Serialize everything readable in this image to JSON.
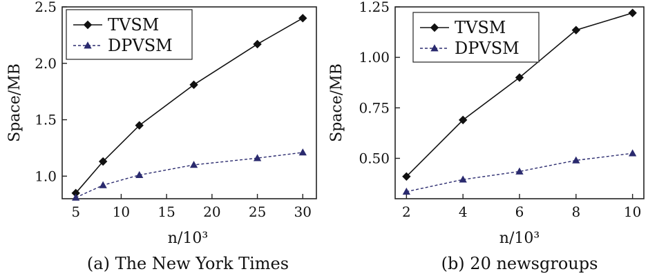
{
  "chart_data": [
    {
      "type": "line",
      "caption": "(a) The New York Times",
      "xlabel": "n/10³",
      "ylabel": "Space/MB",
      "xlim": [
        3.5,
        31.5
      ],
      "ylim": [
        0.8,
        2.5
      ],
      "xticks": [
        "5",
        "10",
        "15",
        "20",
        "25",
        "30"
      ],
      "yticks": [
        "1.0",
        "1.5",
        "2.0",
        "2.5"
      ],
      "legend_position": "top-left",
      "grid": false,
      "series": [
        {
          "name": "TVSM",
          "color": "#111111",
          "marker": "diamond",
          "style": "solid",
          "x": [
            5,
            8,
            12,
            18,
            25,
            30
          ],
          "y": [
            0.85,
            1.13,
            1.45,
            1.81,
            2.17,
            2.4
          ]
        },
        {
          "name": "DPVSM",
          "color": "#2a2a6e",
          "marker": "triangle",
          "style": "dashed",
          "x": [
            5,
            8,
            12,
            18,
            25,
            30
          ],
          "y": [
            0.81,
            0.92,
            1.01,
            1.1,
            1.16,
            1.21
          ]
        }
      ]
    },
    {
      "type": "line",
      "caption": "(b) 20 newsgroups",
      "xlabel": "n/10³",
      "ylabel": "Space/MB",
      "xlim": [
        1.6,
        10.4
      ],
      "ylim": [
        0.3,
        1.25
      ],
      "xticks": [
        "2",
        "4",
        "6",
        "8",
        "10"
      ],
      "yticks": [
        "0.50",
        "0.75",
        "1.00",
        "1.25"
      ],
      "legend_position": "top-left",
      "grid": false,
      "series": [
        {
          "name": "TVSM",
          "color": "#111111",
          "marker": "diamond",
          "style": "solid",
          "x": [
            2,
            4,
            6,
            8,
            10
          ],
          "y": [
            0.41,
            0.69,
            0.9,
            1.135,
            1.22
          ]
        },
        {
          "name": "DPVSM",
          "color": "#2a2a6e",
          "marker": "triangle",
          "style": "dashed",
          "x": [
            2,
            4,
            6,
            8,
            10
          ],
          "y": [
            0.335,
            0.395,
            0.435,
            0.49,
            0.525
          ]
        }
      ]
    }
  ]
}
